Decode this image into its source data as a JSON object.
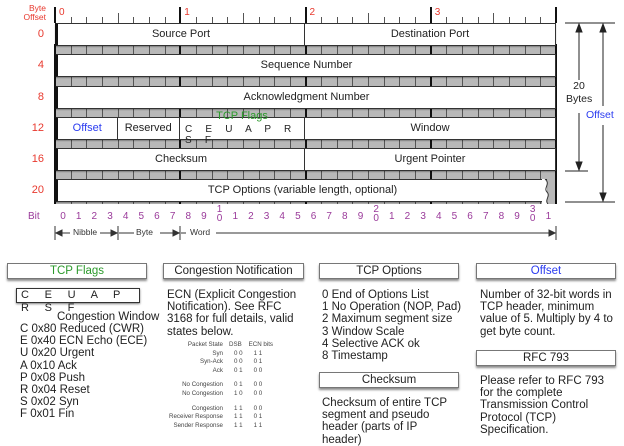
{
  "header": {
    "byte_offset_label_line1": "Byte",
    "byte_offset_label_line2": "Offset",
    "ruler_bytes": [
      "0",
      "1",
      "2",
      "3"
    ]
  },
  "colors": {
    "byte_offset": "#e8392e",
    "offset": "#2a3bf0",
    "flags": "#2b9a2b",
    "bits": "#9a3a9a"
  },
  "rows": [
    {
      "offset": "0",
      "fields": [
        {
          "label": "Source Port",
          "bits": 16
        },
        {
          "label": "Destination Port",
          "bits": 16
        }
      ]
    },
    {
      "offset": "4",
      "fields": [
        {
          "label": "Sequence Number",
          "bits": 32
        }
      ]
    },
    {
      "offset": "8",
      "fields": [
        {
          "label": "Acknowledgment Number",
          "bits": 32
        }
      ]
    },
    {
      "offset": "12",
      "fields": [
        {
          "label": "Offset",
          "bits": 4,
          "color": "#2a3bf0"
        },
        {
          "label": "Reserved",
          "bits": 4
        },
        {
          "label": "TCP Flags",
          "sub": "C E U A P R S F",
          "bits": 8,
          "color": "#2b9a2b"
        },
        {
          "label": "Window",
          "bits": 16
        }
      ]
    },
    {
      "offset": "16",
      "fields": [
        {
          "label": "Checksum",
          "bits": 16
        },
        {
          "label": "Urgent Pointer",
          "bits": 16
        }
      ]
    },
    {
      "offset": "20",
      "fields": [
        {
          "label": "TCP Options (variable length, optional)",
          "bits": 32
        }
      ]
    }
  ],
  "bits": {
    "label": "Bit",
    "numbers": [
      "0",
      "1",
      "2",
      "3",
      "4",
      "5",
      "6",
      "7",
      "8",
      "9",
      "10",
      "1",
      "2",
      "3",
      "4",
      "5",
      "6",
      "7",
      "8",
      "9",
      "20",
      "1",
      "2",
      "3",
      "4",
      "5",
      "6",
      "7",
      "8",
      "9",
      "30",
      "1"
    ]
  },
  "scale": {
    "nibble": "Nibble",
    "byte": "Byte",
    "word": "Word"
  },
  "side": {
    "size_line1": "20",
    "size_line2": "Bytes",
    "offset": "Offset"
  },
  "panels": {
    "flags": {
      "title": "TCP Flags",
      "box": "C E U A P R S F",
      "subtitle": "Congestion Window",
      "items": [
        "C 0x80 Reduced (CWR)",
        "E 0x40 ECN Echo (ECE)",
        "U 0x20 Urgent",
        "A 0x10 Ack",
        "P 0x08 Push",
        "R 0x04 Reset",
        "S 0x02 Syn",
        "F 0x01 Fin"
      ]
    },
    "congestion": {
      "title": "Congestion Notification",
      "text": "ECN (Explicit Congestion Notification).  See RFC 3168 for full details, valid states below.",
      "columns": [
        "Packet State",
        "DSB",
        "ECN bits"
      ],
      "rows": [
        [
          "Syn",
          "0 0",
          "1 1"
        ],
        [
          "Syn-Ack",
          "0 0",
          "0 1"
        ],
        [
          "Ack",
          "0 1",
          "0 0"
        ],
        [
          "",
          "",
          ""
        ],
        [
          "No Congestion",
          "0 1",
          "0 0"
        ],
        [
          "No Congestion",
          "1 0",
          "0 0"
        ],
        [
          "",
          "",
          ""
        ],
        [
          "Congestion",
          "1 1",
          "0 0"
        ],
        [
          "Receiver Response",
          "1 1",
          "0 1"
        ],
        [
          "Sender Response",
          "1 1",
          "1 1"
        ]
      ]
    },
    "options": {
      "title": "TCP Options",
      "items": [
        "0 End of Options List",
        "1 No Operation (NOP, Pad)",
        "2 Maximum segment size",
        "3 Window Scale",
        "4 Selective ACK ok",
        "8 Timestamp"
      ]
    },
    "checksum": {
      "title": "Checksum",
      "text": "Checksum of entire TCP segment and pseudo header (parts of IP header)"
    },
    "offset": {
      "title": "Offset",
      "text": "Number of 32-bit words in TCP header, minimum value of 5.  Multiply by 4 to get byte count."
    },
    "rfc": {
      "title": "RFC 793",
      "text": "Please refer to RFC 793 for the complete Transmission Control Protocol (TCP) Specification."
    }
  }
}
